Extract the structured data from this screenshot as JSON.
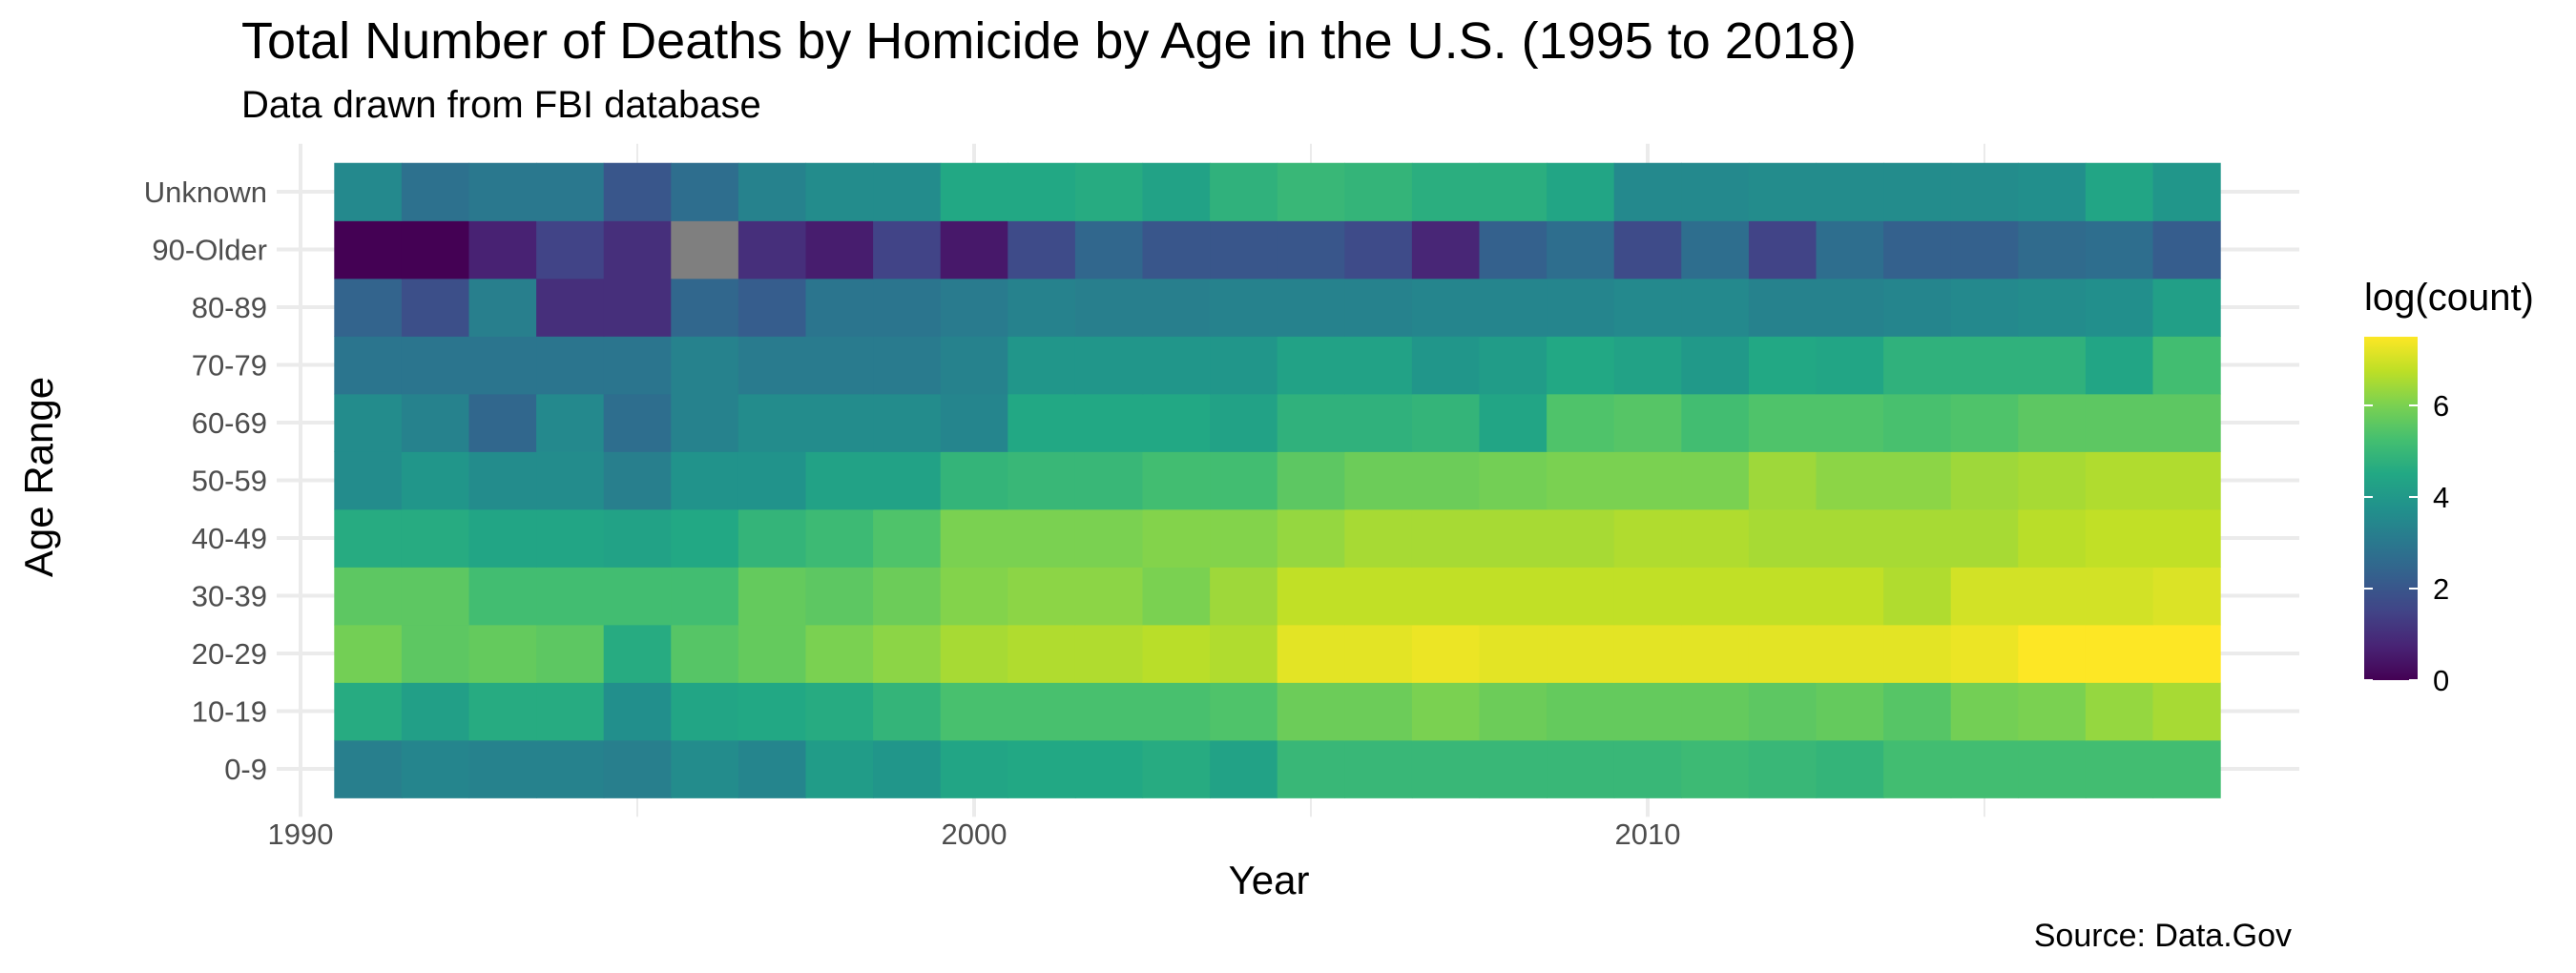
{
  "chart_data": {
    "type": "heatmap",
    "title": "Total Number of Deaths by Homicide by Age in the U.S. (1995 to 2018)",
    "subtitle": "Data drawn from FBI database",
    "caption": "Source: Data.Gov",
    "xlabel": "Year",
    "ylabel": "Age Range",
    "xlim": [
      1990,
      2018.5
    ],
    "x_ticks": [
      1990,
      2000,
      2010
    ],
    "years": [
      1991,
      1992,
      1993,
      1994,
      1995,
      1996,
      1997,
      1998,
      1999,
      2000,
      2001,
      2002,
      2003,
      2004,
      2005,
      2006,
      2007,
      2008,
      2009,
      2010,
      2011,
      2012,
      2013,
      2014,
      2015,
      2016,
      2017,
      2018
    ],
    "age_ranges": [
      "0-9",
      "10-19",
      "20-29",
      "30-39",
      "40-49",
      "50-59",
      "60-69",
      "70-79",
      "80-89",
      "90-Older",
      "Unknown"
    ],
    "values": {
      "Unknown": [
        3.5,
        2.8,
        3.0,
        3.0,
        2.0,
        2.7,
        3.3,
        3.6,
        3.6,
        4.5,
        4.5,
        4.6,
        4.3,
        4.8,
        5.0,
        4.9,
        4.7,
        4.7,
        4.4,
        3.5,
        3.5,
        3.6,
        3.6,
        3.6,
        3.6,
        3.7,
        4.4,
        3.9
      ],
      "90-Older": [
        0.0,
        0.0,
        0.7,
        1.5,
        1.0,
        null,
        1.0,
        0.6,
        1.5,
        0.5,
        1.7,
        2.5,
        2.0,
        2.0,
        2.0,
        1.7,
        0.8,
        2.3,
        2.7,
        1.7,
        2.7,
        1.5,
        2.7,
        2.3,
        2.3,
        2.6,
        2.7,
        2.2
      ],
      "80-89": [
        2.4,
        1.8,
        3.2,
        1.0,
        1.0,
        2.5,
        2.2,
        2.9,
        2.9,
        3.1,
        3.3,
        3.2,
        3.2,
        3.3,
        3.3,
        3.3,
        3.4,
        3.4,
        3.4,
        3.5,
        3.5,
        3.3,
        3.3,
        3.4,
        3.5,
        3.6,
        3.7,
        4.2
      ],
      "70-79": [
        2.9,
        2.9,
        2.9,
        2.9,
        2.9,
        3.3,
        3.1,
        3.1,
        3.1,
        3.3,
        3.9,
        3.9,
        3.9,
        3.9,
        4.3,
        4.3,
        3.9,
        4.1,
        4.5,
        4.3,
        4.0,
        4.5,
        4.4,
        4.8,
        4.8,
        4.8,
        4.4,
        5.2
      ],
      "60-69": [
        3.6,
        3.3,
        2.5,
        3.5,
        2.7,
        3.3,
        3.6,
        3.6,
        3.6,
        3.4,
        4.5,
        4.5,
        4.5,
        4.3,
        4.8,
        4.8,
        4.9,
        4.4,
        5.4,
        5.5,
        5.2,
        5.4,
        5.4,
        5.3,
        5.4,
        5.6,
        5.6,
        5.6
      ],
      "50-59": [
        3.6,
        3.9,
        3.6,
        3.6,
        3.2,
        3.8,
        3.8,
        4.3,
        4.3,
        4.9,
        5.0,
        5.0,
        5.2,
        5.2,
        5.6,
        5.8,
        5.8,
        5.9,
        6.0,
        6.0,
        6.0,
        6.4,
        6.2,
        6.2,
        6.4,
        6.5,
        6.6,
        6.6
      ],
      "40-49": [
        4.6,
        4.6,
        4.4,
        4.4,
        4.3,
        4.5,
        4.9,
        5.1,
        5.4,
        6.0,
        6.0,
        6.0,
        6.1,
        6.1,
        6.3,
        6.5,
        6.5,
        6.5,
        6.5,
        6.6,
        6.6,
        6.5,
        6.5,
        6.5,
        6.5,
        6.7,
        6.8,
        6.8
      ],
      "30-39": [
        5.6,
        5.6,
        5.2,
        5.2,
        5.2,
        5.2,
        5.7,
        5.6,
        5.8,
        6.1,
        6.2,
        6.2,
        6.0,
        6.4,
        6.8,
        6.8,
        6.8,
        6.8,
        6.8,
        6.8,
        6.8,
        6.8,
        6.8,
        6.6,
        7.0,
        7.0,
        7.0,
        7.1
      ],
      "20-29": [
        5.9,
        5.6,
        5.7,
        5.6,
        4.6,
        5.5,
        5.7,
        6.0,
        6.2,
        6.5,
        6.6,
        6.6,
        6.7,
        6.6,
        7.2,
        7.2,
        7.3,
        7.2,
        7.2,
        7.2,
        7.2,
        7.2,
        7.2,
        7.2,
        7.3,
        7.5,
        7.5,
        7.5
      ],
      "10-19": [
        4.6,
        4.2,
        4.6,
        4.6,
        3.7,
        4.4,
        4.5,
        4.6,
        4.9,
        5.3,
        5.3,
        5.3,
        5.3,
        5.4,
        5.8,
        5.8,
        6.0,
        5.8,
        5.7,
        5.7,
        5.7,
        5.6,
        5.7,
        5.5,
        5.9,
        6.0,
        6.3,
        6.5
      ],
      "0-9": [
        3.2,
        3.4,
        3.3,
        3.3,
        3.2,
        3.6,
        3.4,
        4.1,
        3.9,
        4.4,
        4.5,
        4.5,
        4.6,
        4.3,
        5.0,
        5.0,
        5.0,
        5.0,
        5.0,
        5.0,
        5.1,
        5.0,
        4.9,
        5.2,
        5.2,
        5.2,
        5.2,
        5.2
      ]
    },
    "na_color": "#7f7f7f",
    "legend": {
      "title": "log(count)",
      "placement": "right",
      "ticks": [
        0,
        2,
        4,
        6
      ],
      "range": [
        0,
        7.5
      ],
      "palette": "viridis"
    },
    "grid": true
  }
}
